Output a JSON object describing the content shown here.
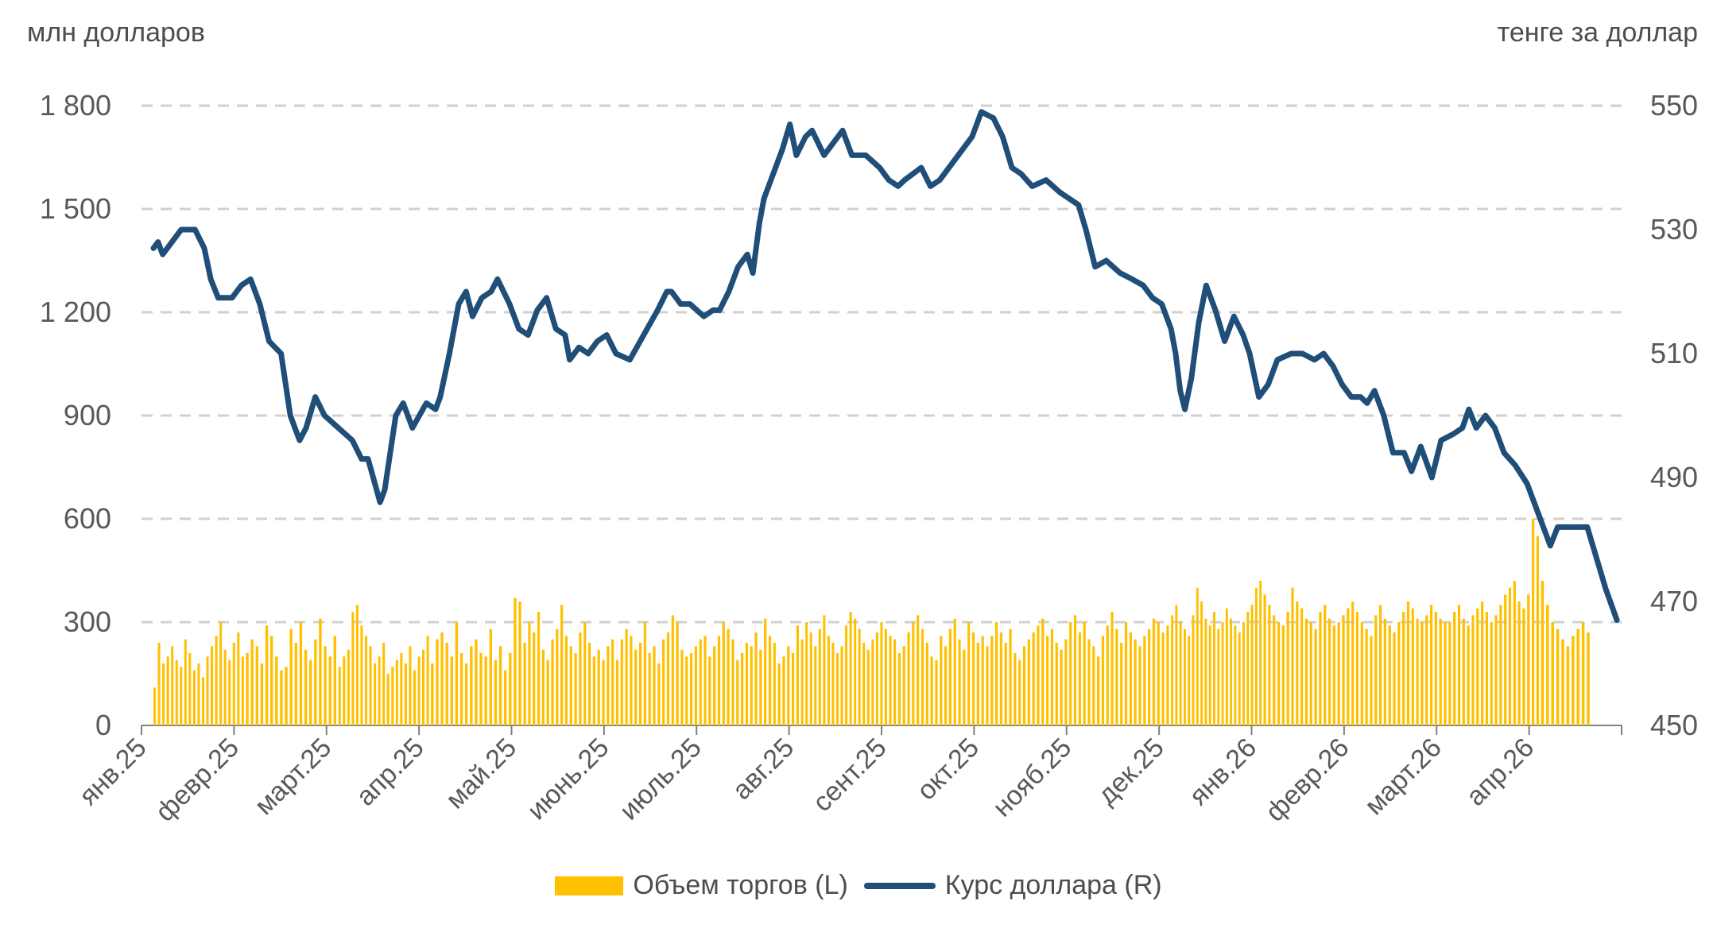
{
  "colors": {
    "bar": "#ffc000",
    "line": "#1f4e79",
    "grid": "#d0d0d0",
    "axis": "#7f7f7f",
    "text": "#595959"
  },
  "chart_data": {
    "type": "bar+line",
    "title": "",
    "ylabel_left": "млн долларов",
    "ylabel_right": "тенге за доллар",
    "ylim_left": [
      0,
      1800
    ],
    "ylim_right": [
      450,
      550
    ],
    "yticks_left": [
      "0",
      "300",
      "600",
      "900",
      "1 200",
      "1 500",
      "1 800"
    ],
    "yticks_right": [
      "450",
      "470",
      "490",
      "510",
      "530",
      "550"
    ],
    "x_ticks": [
      "янв.25",
      "февр.25",
      "март.25",
      "апр.25",
      "май.25",
      "июнь.25",
      "июль.25",
      "авг.25",
      "сент.25",
      "окт.25",
      "нояб.25",
      "дек.25",
      "янв.26",
      "февр.26",
      "март.26",
      "апр.26"
    ],
    "grid": "horizontal dashed",
    "legend_position": "bottom",
    "series": [
      {
        "name": "Объем торгов (L)",
        "type": "bar",
        "axis": "left",
        "monthly_values": [
          [
            110,
            240,
            180,
            200,
            230,
            190,
            170,
            250,
            210,
            160,
            180,
            140,
            200,
            230,
            260,
            300,
            220,
            190,
            240,
            270,
            200
          ],
          [
            210,
            250,
            230,
            180,
            290,
            260,
            200,
            160,
            170,
            280,
            240,
            300,
            220,
            190,
            250,
            310,
            230,
            200,
            260
          ],
          [
            170,
            200,
            220,
            330,
            350,
            290,
            260,
            230,
            180,
            200,
            240,
            150,
            170,
            190,
            210,
            180,
            230,
            160,
            200,
            220,
            260
          ],
          [
            180,
            250,
            270,
            240,
            200,
            300,
            210,
            180,
            230,
            250,
            210,
            200,
            280,
            190,
            230,
            160,
            210,
            370,
            360
          ],
          [
            240,
            300,
            270,
            330,
            220,
            190,
            250,
            280,
            350,
            260,
            230,
            210,
            270,
            300,
            240,
            200,
            220,
            190,
            230,
            250
          ],
          [
            190,
            250,
            280,
            260,
            220,
            240,
            300,
            210,
            230,
            180,
            250,
            270,
            320,
            300,
            220,
            200,
            210,
            230,
            250,
            260
          ],
          [
            200,
            230,
            260,
            300,
            280,
            250,
            190,
            210,
            240,
            230,
            270,
            220,
            310,
            260,
            240,
            180,
            200,
            230,
            210,
            290
          ],
          [
            250,
            300,
            270,
            230,
            280,
            320,
            260,
            240,
            210,
            230,
            290,
            330,
            310,
            280,
            240,
            220,
            250,
            270,
            300,
            280,
            260
          ],
          [
            250,
            210,
            230,
            270,
            300,
            320,
            280,
            240,
            200,
            190,
            260,
            230,
            280,
            310,
            250,
            220,
            300,
            270,
            240,
            260
          ],
          [
            230,
            260,
            300,
            270,
            240,
            280,
            210,
            190,
            230,
            250,
            270,
            290,
            310,
            260,
            280,
            240,
            220,
            250,
            300,
            320
          ],
          [
            270,
            300,
            250,
            230,
            200,
            260,
            290,
            330,
            280,
            240,
            300,
            270,
            250,
            230,
            260,
            280,
            310,
            300,
            270,
            290
          ],
          [
            320,
            350,
            300,
            280,
            260,
            320,
            400,
            360,
            310,
            290,
            330,
            280,
            300,
            340,
            310,
            290,
            270,
            300,
            330,
            350,
            400,
            420
          ],
          [
            380,
            350,
            320,
            300,
            290,
            330,
            400,
            360,
            340,
            310,
            300,
            280,
            330,
            350,
            310,
            290,
            300,
            320,
            340,
            360
          ],
          [
            330,
            300,
            280,
            260,
            320,
            350,
            310,
            290,
            270,
            300,
            330,
            360,
            340,
            310,
            300,
            320,
            350,
            330,
            310,
            300
          ],
          [
            300,
            330,
            350,
            310,
            290,
            320,
            340,
            360,
            330,
            300,
            320,
            350,
            380,
            400,
            420,
            360,
            340,
            380,
            600,
            550
          ],
          [
            420,
            350,
            300,
            280,
            250,
            230,
            260,
            280,
            300,
            270
          ]
        ]
      },
      {
        "name": "Курс доллара (R)",
        "type": "line",
        "axis": "right",
        "points": [
          [
            0,
            527
          ],
          [
            0.05,
            528
          ],
          [
            0.1,
            526
          ],
          [
            0.2,
            528
          ],
          [
            0.3,
            530
          ],
          [
            0.45,
            530
          ],
          [
            0.55,
            527
          ],
          [
            0.62,
            522
          ],
          [
            0.7,
            519
          ],
          [
            0.85,
            519
          ],
          [
            0.95,
            521
          ],
          [
            1.05,
            522
          ],
          [
            1.15,
            518
          ],
          [
            1.25,
            512
          ],
          [
            1.38,
            510
          ],
          [
            1.48,
            500
          ],
          [
            1.58,
            496
          ],
          [
            1.65,
            498
          ],
          [
            1.75,
            503
          ],
          [
            1.85,
            500
          ],
          [
            2.0,
            498
          ],
          [
            2.15,
            496
          ],
          [
            2.25,
            493
          ],
          [
            2.32,
            493
          ],
          [
            2.45,
            486
          ],
          [
            2.5,
            488
          ],
          [
            2.55,
            493
          ],
          [
            2.62,
            500
          ],
          [
            2.7,
            502
          ],
          [
            2.8,
            498
          ],
          [
            2.95,
            502
          ],
          [
            3.05,
            501
          ],
          [
            3.1,
            503
          ],
          [
            3.2,
            510
          ],
          [
            3.3,
            518
          ],
          [
            3.38,
            520
          ],
          [
            3.45,
            516
          ],
          [
            3.55,
            519
          ],
          [
            3.65,
            520
          ],
          [
            3.72,
            522
          ],
          [
            3.85,
            518
          ],
          [
            3.95,
            514
          ],
          [
            4.05,
            513
          ],
          [
            4.15,
            517
          ],
          [
            4.25,
            519
          ],
          [
            4.35,
            514
          ],
          [
            4.45,
            513
          ],
          [
            4.5,
            509
          ],
          [
            4.6,
            511
          ],
          [
            4.7,
            510
          ],
          [
            4.8,
            512
          ],
          [
            4.9,
            513
          ],
          [
            5.0,
            510
          ],
          [
            5.15,
            509
          ],
          [
            5.3,
            513
          ],
          [
            5.45,
            517
          ],
          [
            5.55,
            520
          ],
          [
            5.6,
            520
          ],
          [
            5.7,
            518
          ],
          [
            5.8,
            518
          ],
          [
            5.95,
            516
          ],
          [
            6.05,
            517
          ],
          [
            6.12,
            517
          ],
          [
            6.22,
            520
          ],
          [
            6.32,
            524
          ],
          [
            6.42,
            526
          ],
          [
            6.48,
            523
          ],
          [
            6.55,
            531
          ],
          [
            6.6,
            535
          ],
          [
            6.7,
            539
          ],
          [
            6.8,
            543
          ],
          [
            6.88,
            547
          ],
          [
            6.95,
            542
          ],
          [
            7.05,
            545
          ],
          [
            7.12,
            546
          ],
          [
            7.25,
            542
          ],
          [
            7.35,
            544
          ],
          [
            7.45,
            546
          ],
          [
            7.55,
            542
          ],
          [
            7.7,
            542
          ],
          [
            7.85,
            540
          ],
          [
            7.95,
            538
          ],
          [
            8.05,
            537
          ],
          [
            8.12,
            538
          ],
          [
            8.3,
            540
          ],
          [
            8.4,
            537
          ],
          [
            8.5,
            538
          ],
          [
            8.6,
            540
          ],
          [
            8.75,
            543
          ],
          [
            8.85,
            545
          ],
          [
            8.95,
            549
          ],
          [
            9.08,
            548
          ],
          [
            9.18,
            545
          ],
          [
            9.28,
            540
          ],
          [
            9.38,
            539
          ],
          [
            9.5,
            537
          ],
          [
            9.65,
            538
          ],
          [
            9.8,
            536
          ],
          [
            9.9,
            535
          ],
          [
            10.0,
            534
          ],
          [
            10.08,
            530
          ],
          [
            10.18,
            524
          ],
          [
            10.3,
            525
          ],
          [
            10.45,
            523
          ],
          [
            10.58,
            522
          ],
          [
            10.7,
            521
          ],
          [
            10.8,
            519
          ],
          [
            10.9,
            518
          ],
          [
            11.0,
            514
          ],
          [
            11.05,
            510
          ],
          [
            11.1,
            504
          ],
          [
            11.15,
            501
          ],
          [
            11.22,
            506
          ],
          [
            11.3,
            515
          ],
          [
            11.38,
            521
          ],
          [
            11.48,
            517
          ],
          [
            11.58,
            512
          ],
          [
            11.68,
            516
          ],
          [
            11.78,
            513
          ],
          [
            11.85,
            510
          ],
          [
            11.95,
            503
          ],
          [
            12.05,
            505
          ],
          [
            12.15,
            509
          ],
          [
            12.3,
            510
          ],
          [
            12.42,
            510
          ],
          [
            12.55,
            509
          ],
          [
            12.65,
            510
          ],
          [
            12.75,
            508
          ],
          [
            12.85,
            505
          ],
          [
            12.95,
            503
          ],
          [
            13.05,
            503
          ],
          [
            13.12,
            502
          ],
          [
            13.2,
            504
          ],
          [
            13.3,
            500
          ],
          [
            13.4,
            494
          ],
          [
            13.52,
            494
          ],
          [
            13.6,
            491
          ],
          [
            13.7,
            495
          ],
          [
            13.82,
            490
          ],
          [
            13.92,
            496
          ],
          [
            14.05,
            497
          ],
          [
            14.15,
            498
          ],
          [
            14.22,
            501
          ],
          [
            14.3,
            498
          ],
          [
            14.4,
            500
          ],
          [
            14.5,
            498
          ],
          [
            14.6,
            494
          ],
          [
            14.72,
            492
          ],
          [
            14.85,
            489
          ],
          [
            14.95,
            485
          ],
          [
            15.05,
            481
          ],
          [
            15.1,
            479
          ],
          [
            15.18,
            482
          ],
          [
            15.3,
            482
          ],
          [
            15.4,
            482
          ],
          [
            15.5,
            482
          ],
          [
            15.58,
            478
          ],
          [
            15.7,
            472
          ],
          [
            15.82,
            467
          ]
        ]
      }
    ]
  }
}
